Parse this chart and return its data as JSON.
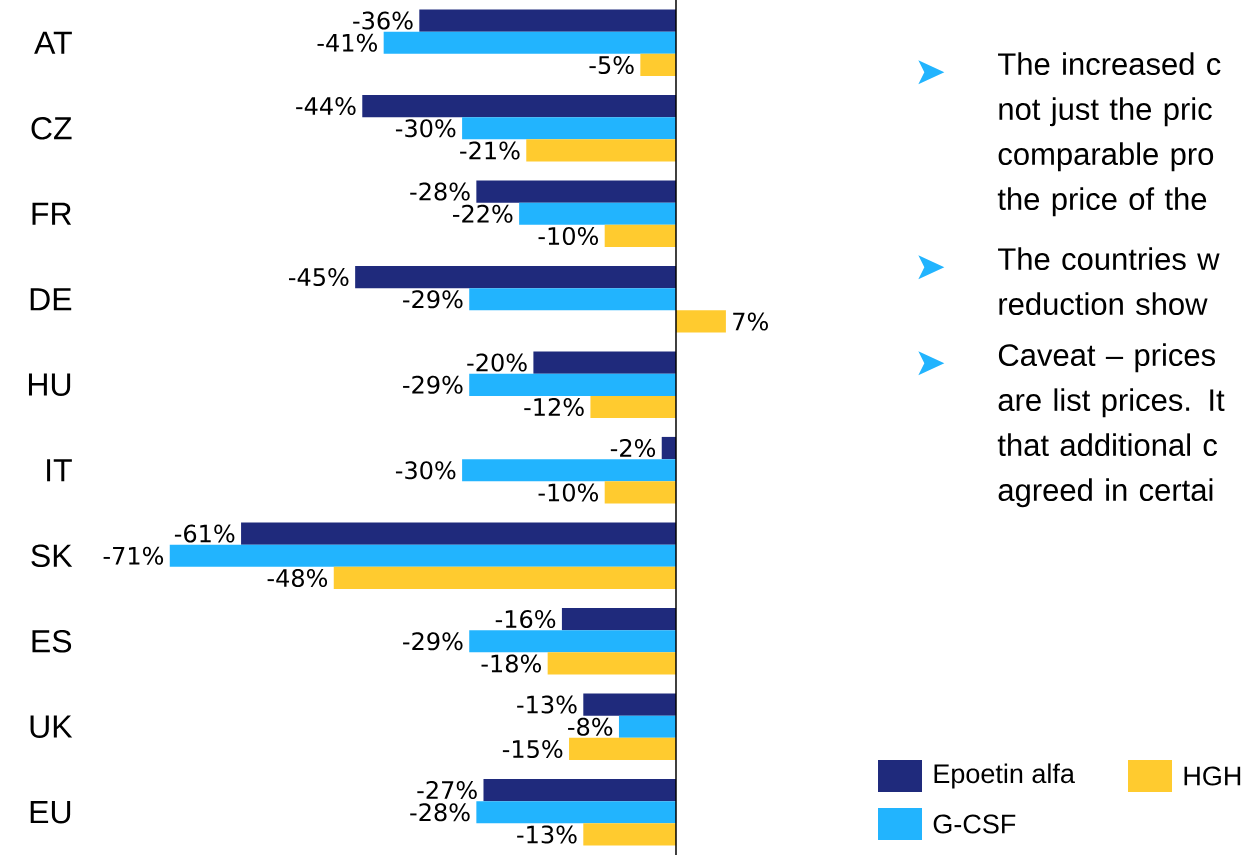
{
  "chart_data": {
    "type": "bar",
    "orientation": "horizontal",
    "legend": "bottom right",
    "categories": [
      "AT",
      "CZ",
      "FR",
      "DE",
      "HU",
      "IT",
      "SK",
      "ES",
      "UK",
      "EU"
    ],
    "series": [
      {
        "name": "Epoetin alfa",
        "color": "#1f2a7c",
        "values": [
          -36,
          -44,
          -28,
          -45,
          -20,
          -2,
          -61,
          -16,
          -13,
          -27
        ],
        "value_labels": [
          "-36%",
          "-44%",
          "-28%",
          "-45%",
          "-20%",
          "-2%",
          "-61%",
          "-16%",
          "-13%",
          "-27%"
        ]
      },
      {
        "name": "G-CSF",
        "color": "#22b4fe",
        "values": [
          -41,
          -30,
          -22,
          -29,
          -29,
          -30,
          -71,
          -29,
          -8,
          -28
        ],
        "value_labels": [
          "-41%",
          "-30%",
          "-22%",
          "-29%",
          "-29%",
          "-30%",
          "-71%",
          "-29%",
          "-8%",
          "-28%"
        ]
      },
      {
        "name": "HGH",
        "color": "#ffcb2f",
        "values": [
          -5,
          -21,
          -10,
          7,
          -12,
          -10,
          -48,
          -18,
          -15,
          -13
        ],
        "value_labels": [
          "-5%",
          "-21%",
          "-10%",
          "7%",
          "-12%",
          "-10%",
          "-48%",
          "-18%",
          "-15%",
          "-13%"
        ]
      }
    ],
    "annotations": [
      "The increased c not just the pric comparable pro the price of the",
      "The countries w reduction show",
      "Caveat – prices are list prices. It that additional c agreed in certai"
    ]
  }
}
